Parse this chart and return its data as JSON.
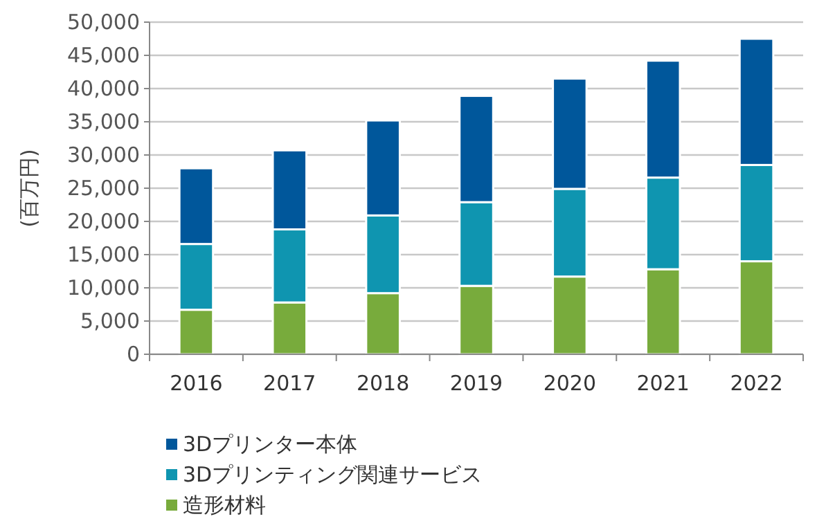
{
  "chart_data": {
    "type": "bar",
    "stacked": true,
    "ylabel": "(百万円)",
    "categories": [
      "2016",
      "2017",
      "2018",
      "2019",
      "2020",
      "2021",
      "2022"
    ],
    "series": [
      {
        "name": "造形材料",
        "color": "#78ab3c",
        "values": [
          6700,
          7800,
          9200,
          10300,
          11700,
          12800,
          14000
        ]
      },
      {
        "name": "3Dプリンティング関連サービス",
        "color": "#0f95b0",
        "values": [
          9900,
          11000,
          11700,
          12600,
          13200,
          13800,
          14500
        ]
      },
      {
        "name": "3Dプリンター本体",
        "color": "#00579b",
        "values": [
          11400,
          11900,
          14300,
          16000,
          16600,
          17600,
          19000
        ]
      }
    ],
    "ylim": [
      0,
      50000
    ],
    "yticks": [
      {
        "value": 0,
        "label": "0"
      },
      {
        "value": 5000,
        "label": "5,000"
      },
      {
        "value": 10000,
        "label": "10,000"
      },
      {
        "value": 15000,
        "label": "15,000"
      },
      {
        "value": 20000,
        "label": "20,000"
      },
      {
        "value": 25000,
        "label": "25,000"
      },
      {
        "value": 30000,
        "label": "30,000"
      },
      {
        "value": 35000,
        "label": "35,000"
      },
      {
        "value": 40000,
        "label": "40,000"
      },
      {
        "value": 45000,
        "label": "45,000"
      },
      {
        "value": 50000,
        "label": "50,000"
      }
    ],
    "grid": "y",
    "legend": "bottom"
  }
}
